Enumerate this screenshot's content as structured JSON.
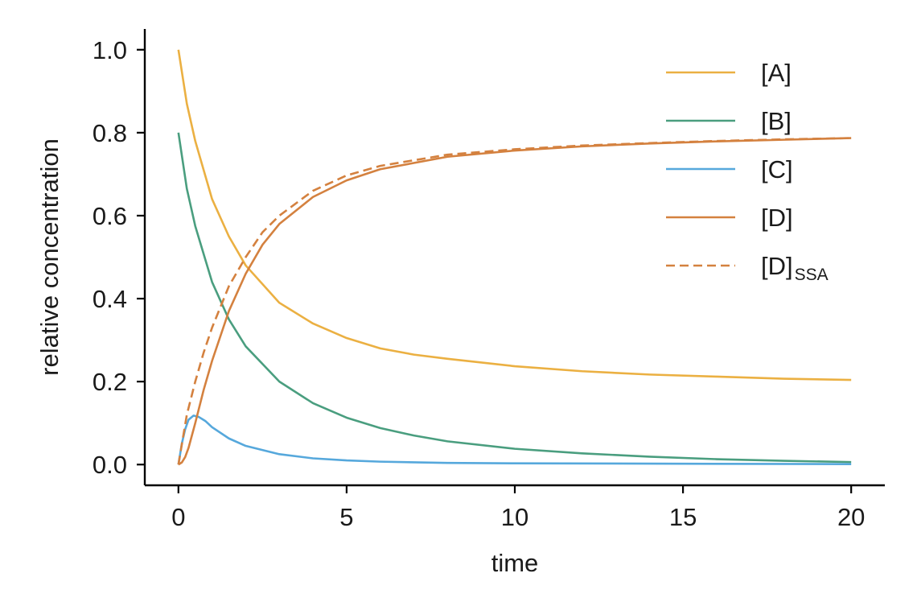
{
  "chart_data": {
    "type": "line",
    "title": "",
    "xlabel": "time",
    "ylabel": "relative concentration",
    "xlim": [
      -1,
      21
    ],
    "ylim": [
      -0.05,
      1.05
    ],
    "xticks": [
      0,
      5,
      10,
      15,
      20
    ],
    "xtick_labels": [
      "0",
      "5",
      "10",
      "15",
      "20"
    ],
    "yticks": [
      0.0,
      0.2,
      0.4,
      0.6,
      0.8,
      1.0
    ],
    "ytick_labels": [
      "0.0",
      "0.2",
      "0.4",
      "0.6",
      "0.8",
      "1.0"
    ],
    "grid": false,
    "legend_position": "top-right",
    "series": [
      {
        "name": "[A]",
        "color": "#EBB042",
        "dash": "solid",
        "x": [
          0,
          0.25,
          0.5,
          1,
          1.5,
          2,
          3,
          4,
          5,
          6,
          7,
          8,
          10,
          12,
          14,
          16,
          18,
          20
        ],
        "y": [
          1.0,
          0.87,
          0.78,
          0.64,
          0.55,
          0.48,
          0.39,
          0.34,
          0.305,
          0.28,
          0.265,
          0.255,
          0.237,
          0.225,
          0.217,
          0.212,
          0.207,
          0.204
        ]
      },
      {
        "name": "[B]",
        "color": "#4A9E7F",
        "dash": "solid",
        "x": [
          0,
          0.25,
          0.5,
          1,
          1.5,
          2,
          3,
          4,
          5,
          6,
          7,
          8,
          10,
          12,
          14,
          16,
          18,
          20
        ],
        "y": [
          0.8,
          0.665,
          0.575,
          0.44,
          0.35,
          0.285,
          0.2,
          0.148,
          0.113,
          0.088,
          0.07,
          0.056,
          0.038,
          0.027,
          0.019,
          0.013,
          0.009,
          0.006
        ]
      },
      {
        "name": "[C]",
        "color": "#56A8DC",
        "dash": "solid",
        "x": [
          0,
          0.1,
          0.2,
          0.3,
          0.45,
          0.6,
          0.8,
          1,
          1.5,
          2,
          3,
          4,
          5,
          6,
          8,
          10,
          15,
          20
        ],
        "y": [
          0.0,
          0.05,
          0.085,
          0.108,
          0.118,
          0.115,
          0.105,
          0.09,
          0.063,
          0.045,
          0.025,
          0.015,
          0.01,
          0.007,
          0.004,
          0.003,
          0.002,
          0.001
        ]
      },
      {
        "name": "[D]",
        "color": "#D4813F",
        "dash": "solid",
        "x": [
          0,
          0.1,
          0.2,
          0.3,
          0.5,
          0.75,
          1,
          1.5,
          2,
          2.5,
          3,
          4,
          5,
          6,
          8,
          10,
          12,
          14,
          16,
          18,
          20
        ],
        "y": [
          0.0,
          0.005,
          0.018,
          0.04,
          0.1,
          0.18,
          0.25,
          0.37,
          0.46,
          0.53,
          0.58,
          0.645,
          0.685,
          0.712,
          0.742,
          0.757,
          0.767,
          0.774,
          0.779,
          0.783,
          0.787
        ]
      },
      {
        "name": "[D]",
        "name_subscript": "SSA",
        "color": "#D4813F",
        "dash": "dashed",
        "x": [
          0,
          0.25,
          0.5,
          0.75,
          1,
          1.5,
          2,
          2.5,
          3,
          4,
          5,
          6,
          8,
          10,
          12,
          14,
          16,
          18,
          20
        ],
        "y": [
          0.0,
          0.12,
          0.2,
          0.27,
          0.33,
          0.43,
          0.5,
          0.56,
          0.6,
          0.66,
          0.697,
          0.72,
          0.747,
          0.76,
          0.769,
          0.775,
          0.78,
          0.784,
          0.787
        ]
      }
    ]
  }
}
